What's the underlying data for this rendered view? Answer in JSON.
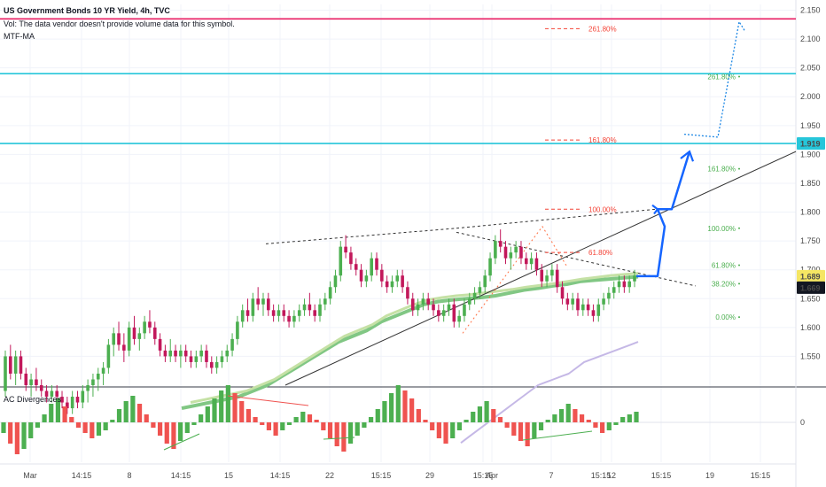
{
  "chart_data": {
    "type": "candlestick",
    "title": "US Government Bonds 10 YR Yield, 4h, TVC",
    "vol_note": "Vol: The data vendor doesn't provide volume data for this symbol.",
    "indicator_label": "MTF-MA",
    "oscillator_label": "AC Divergences",
    "oscillator_zero_label": "0",
    "price_axis": {
      "ticks": [
        "2.150",
        "2.100",
        "2.050",
        "2.000",
        "1.950",
        "1.900",
        "1.850",
        "1.800",
        "1.750",
        "1.700",
        "1.650",
        "1.600",
        "1.550"
      ],
      "range": [
        1.5,
        2.16
      ]
    },
    "price_badges": [
      {
        "value": "1.919",
        "color": "#26c6da"
      },
      {
        "value": "1.689",
        "color": "#f5e663"
      },
      {
        "value": "1.669",
        "color": "#131722"
      }
    ],
    "x_ticks": [
      "Mar",
      "14:15",
      "8",
      "14:15",
      "15",
      "14:15",
      "22",
      "15:15",
      "29",
      "15:15",
      "Apr",
      "7",
      "15:15",
      "12",
      "15:15",
      "19",
      "15:15"
    ],
    "horizontal_lines": [
      {
        "price": 2.135,
        "color": "#e91e63"
      },
      {
        "price": 2.04,
        "color": "#26c6da"
      },
      {
        "price": 1.919,
        "color": "#26c6da"
      }
    ],
    "fib_left": [
      {
        "label": "261.80%",
        "price": 2.118,
        "color": "#f44336"
      },
      {
        "label": "161.80%",
        "price": 1.925,
        "color": "#f44336"
      },
      {
        "label": "100.00%",
        "price": 1.805,
        "color": "#f44336"
      },
      {
        "label": "61.80%",
        "price": 1.73,
        "color": "#f44336"
      }
    ],
    "fib_right": [
      {
        "label": "261.80%",
        "price": 2.035,
        "color": "#4caf50"
      },
      {
        "label": "161.80%",
        "price": 1.875,
        "color": "#4caf50"
      },
      {
        "label": "100.00%",
        "price": 1.772,
        "color": "#4caf50"
      },
      {
        "label": "61.80%",
        "price": 1.708,
        "color": "#4caf50"
      },
      {
        "label": "38.20%",
        "price": 1.676,
        "color": "#4caf50"
      },
      {
        "label": "0.00%",
        "price": 1.618,
        "color": "#4caf50"
      }
    ],
    "candles": [
      [
        1.49,
        1.56,
        1.48,
        1.55
      ],
      [
        1.55,
        1.57,
        1.51,
        1.52
      ],
      [
        1.52,
        1.56,
        1.5,
        1.55
      ],
      [
        1.55,
        1.56,
        1.51,
        1.52
      ],
      [
        1.52,
        1.53,
        1.49,
        1.5
      ],
      [
        1.5,
        1.52,
        1.48,
        1.51
      ],
      [
        1.51,
        1.53,
        1.49,
        1.5
      ],
      [
        1.5,
        1.51,
        1.48,
        1.49
      ],
      [
        1.49,
        1.5,
        1.47,
        1.48
      ],
      [
        1.48,
        1.5,
        1.47,
        1.49
      ],
      [
        1.49,
        1.5,
        1.47,
        1.48
      ],
      [
        1.48,
        1.49,
        1.46,
        1.47
      ],
      [
        1.47,
        1.48,
        1.45,
        1.46
      ],
      [
        1.46,
        1.49,
        1.45,
        1.48
      ],
      [
        1.48,
        1.49,
        1.46,
        1.47
      ],
      [
        1.47,
        1.5,
        1.46,
        1.49
      ],
      [
        1.49,
        1.51,
        1.47,
        1.5
      ],
      [
        1.5,
        1.52,
        1.48,
        1.51
      ],
      [
        1.51,
        1.53,
        1.49,
        1.52
      ],
      [
        1.52,
        1.54,
        1.5,
        1.53
      ],
      [
        1.53,
        1.58,
        1.52,
        1.57
      ],
      [
        1.57,
        1.6,
        1.55,
        1.59
      ],
      [
        1.59,
        1.61,
        1.56,
        1.57
      ],
      [
        1.57,
        1.59,
        1.54,
        1.56
      ],
      [
        1.56,
        1.61,
        1.55,
        1.6
      ],
      [
        1.6,
        1.62,
        1.57,
        1.58
      ],
      [
        1.58,
        1.6,
        1.56,
        1.59
      ],
      [
        1.59,
        1.62,
        1.58,
        1.61
      ],
      [
        1.61,
        1.63,
        1.59,
        1.6
      ],
      [
        1.6,
        1.61,
        1.57,
        1.58
      ],
      [
        1.58,
        1.59,
        1.55,
        1.56
      ],
      [
        1.56,
        1.57,
        1.54,
        1.55
      ],
      [
        1.55,
        1.58,
        1.54,
        1.56
      ],
      [
        1.56,
        1.57,
        1.54,
        1.55
      ],
      [
        1.55,
        1.57,
        1.53,
        1.56
      ],
      [
        1.56,
        1.57,
        1.54,
        1.55
      ],
      [
        1.55,
        1.56,
        1.53,
        1.54
      ],
      [
        1.54,
        1.56,
        1.53,
        1.55
      ],
      [
        1.55,
        1.57,
        1.54,
        1.56
      ],
      [
        1.56,
        1.57,
        1.53,
        1.54
      ],
      [
        1.54,
        1.55,
        1.52,
        1.53
      ],
      [
        1.53,
        1.55,
        1.52,
        1.54
      ],
      [
        1.54,
        1.56,
        1.53,
        1.55
      ],
      [
        1.55,
        1.57,
        1.54,
        1.56
      ],
      [
        1.56,
        1.59,
        1.55,
        1.58
      ],
      [
        1.58,
        1.62,
        1.57,
        1.61
      ],
      [
        1.61,
        1.64,
        1.6,
        1.63
      ],
      [
        1.63,
        1.65,
        1.61,
        1.62
      ],
      [
        1.62,
        1.66,
        1.61,
        1.65
      ],
      [
        1.65,
        1.67,
        1.63,
        1.64
      ],
      [
        1.64,
        1.66,
        1.62,
        1.65
      ],
      [
        1.65,
        1.66,
        1.62,
        1.63
      ],
      [
        1.63,
        1.64,
        1.61,
        1.62
      ],
      [
        1.62,
        1.64,
        1.61,
        1.63
      ],
      [
        1.63,
        1.64,
        1.61,
        1.62
      ],
      [
        1.62,
        1.63,
        1.6,
        1.61
      ],
      [
        1.61,
        1.63,
        1.6,
        1.62
      ],
      [
        1.62,
        1.64,
        1.61,
        1.63
      ],
      [
        1.63,
        1.65,
        1.62,
        1.64
      ],
      [
        1.64,
        1.66,
        1.62,
        1.63
      ],
      [
        1.63,
        1.64,
        1.61,
        1.62
      ],
      [
        1.62,
        1.65,
        1.61,
        1.64
      ],
      [
        1.64,
        1.66,
        1.63,
        1.65
      ],
      [
        1.65,
        1.68,
        1.64,
        1.67
      ],
      [
        1.67,
        1.7,
        1.66,
        1.69
      ],
      [
        1.69,
        1.75,
        1.68,
        1.74
      ],
      [
        1.74,
        1.76,
        1.72,
        1.73
      ],
      [
        1.73,
        1.74,
        1.7,
        1.71
      ],
      [
        1.71,
        1.72,
        1.69,
        1.7
      ],
      [
        1.7,
        1.71,
        1.67,
        1.68
      ],
      [
        1.68,
        1.7,
        1.67,
        1.69
      ],
      [
        1.69,
        1.73,
        1.68,
        1.72
      ],
      [
        1.72,
        1.73,
        1.69,
        1.7
      ],
      [
        1.7,
        1.71,
        1.67,
        1.68
      ],
      [
        1.68,
        1.69,
        1.66,
        1.67
      ],
      [
        1.67,
        1.69,
        1.66,
        1.68
      ],
      [
        1.68,
        1.7,
        1.67,
        1.69
      ],
      [
        1.69,
        1.7,
        1.66,
        1.67
      ],
      [
        1.67,
        1.68,
        1.64,
        1.65
      ],
      [
        1.65,
        1.66,
        1.62,
        1.63
      ],
      [
        1.63,
        1.65,
        1.62,
        1.64
      ],
      [
        1.64,
        1.66,
        1.63,
        1.65
      ],
      [
        1.65,
        1.66,
        1.63,
        1.64
      ],
      [
        1.64,
        1.65,
        1.62,
        1.63
      ],
      [
        1.63,
        1.64,
        1.61,
        1.62
      ],
      [
        1.62,
        1.64,
        1.61,
        1.63
      ],
      [
        1.63,
        1.65,
        1.62,
        1.64
      ],
      [
        1.64,
        1.65,
        1.6,
        1.61
      ],
      [
        1.61,
        1.63,
        1.6,
        1.62
      ],
      [
        1.62,
        1.65,
        1.61,
        1.64
      ],
      [
        1.64,
        1.66,
        1.63,
        1.65
      ],
      [
        1.65,
        1.67,
        1.64,
        1.66
      ],
      [
        1.66,
        1.68,
        1.65,
        1.67
      ],
      [
        1.67,
        1.7,
        1.66,
        1.69
      ],
      [
        1.69,
        1.73,
        1.68,
        1.72
      ],
      [
        1.72,
        1.76,
        1.71,
        1.75
      ],
      [
        1.75,
        1.77,
        1.73,
        1.74
      ],
      [
        1.74,
        1.75,
        1.71,
        1.72
      ],
      [
        1.72,
        1.74,
        1.7,
        1.73
      ],
      [
        1.73,
        1.75,
        1.72,
        1.74
      ],
      [
        1.74,
        1.75,
        1.71,
        1.72
      ],
      [
        1.72,
        1.73,
        1.7,
        1.71
      ],
      [
        1.71,
        1.73,
        1.7,
        1.72
      ],
      [
        1.72,
        1.73,
        1.69,
        1.7
      ],
      [
        1.7,
        1.71,
        1.67,
        1.68
      ],
      [
        1.68,
        1.7,
        1.67,
        1.69
      ],
      [
        1.69,
        1.71,
        1.68,
        1.7
      ],
      [
        1.7,
        1.71,
        1.66,
        1.67
      ],
      [
        1.67,
        1.68,
        1.64,
        1.65
      ],
      [
        1.65,
        1.66,
        1.63,
        1.64
      ],
      [
        1.64,
        1.66,
        1.63,
        1.65
      ],
      [
        1.65,
        1.66,
        1.62,
        1.63
      ],
      [
        1.63,
        1.65,
        1.62,
        1.64
      ],
      [
        1.64,
        1.65,
        1.62,
        1.63
      ],
      [
        1.63,
        1.64,
        1.61,
        1.62
      ],
      [
        1.62,
        1.65,
        1.61,
        1.64
      ],
      [
        1.64,
        1.66,
        1.63,
        1.65
      ],
      [
        1.65,
        1.67,
        1.64,
        1.66
      ],
      [
        1.66,
        1.68,
        1.65,
        1.67
      ],
      [
        1.67,
        1.69,
        1.66,
        1.68
      ],
      [
        1.68,
        1.69,
        1.66,
        1.67
      ],
      [
        1.67,
        1.69,
        1.66,
        1.68
      ],
      [
        1.68,
        1.7,
        1.67,
        1.69
      ]
    ],
    "moving_averages": [
      {
        "name": "",
        "color": "#81c784",
        "values": [
          1.46,
          1.465,
          1.47,
          1.475,
          1.48,
          1.49,
          1.5,
          1.515,
          1.53,
          1.545,
          1.56,
          1.575,
          1.585,
          1.595,
          1.61,
          1.62,
          1.63,
          1.64,
          1.645,
          1.648,
          1.65,
          1.652,
          1.655,
          1.66,
          1.665,
          1.668,
          1.672,
          1.675,
          1.68,
          1.682,
          1.684,
          1.686,
          1.688
        ]
      },
      {
        "name": "",
        "color": "#c5e1a5",
        "values": [
          1.47,
          1.475,
          1.48,
          1.485,
          1.49,
          1.5,
          1.51,
          1.525,
          1.54,
          1.555,
          1.57,
          1.585,
          1.595,
          1.605,
          1.62,
          1.63,
          1.64,
          1.648,
          1.652,
          1.655,
          1.657,
          1.66,
          1.663,
          1.666,
          1.67,
          1.673,
          1.676,
          1.68,
          1.684,
          1.687,
          1.69,
          1.692,
          1.694
        ]
      },
      {
        "name": "",
        "color": "#c5b8e6",
        "values": [
          1.4,
          1.41,
          1.42,
          1.43,
          1.44,
          1.45,
          1.46,
          1.47,
          1.48,
          1.49,
          1.5,
          1.505,
          1.51,
          1.515,
          1.52,
          1.53,
          1.54,
          1.545,
          1.55,
          1.555,
          1.56,
          1.565,
          1.57,
          1.575
        ]
      }
    ],
    "oscillator_values": [
      -0.4,
      -0.8,
      -1.2,
      -1.0,
      -0.6,
      -0.2,
      0.3,
      0.7,
      0.9,
      0.6,
      0.2,
      -0.2,
      -0.4,
      -0.6,
      -0.5,
      -0.3,
      0.1,
      0.5,
      0.8,
      1.0,
      0.7,
      0.3,
      -0.2,
      -0.5,
      -0.8,
      -1.0,
      -0.7,
      -0.4,
      -0.1,
      0.3,
      0.6,
      0.9,
      1.2,
      1.4,
      1.1,
      0.8,
      0.5,
      0.2,
      -0.1,
      -0.3,
      -0.5,
      -0.3,
      -0.1,
      0.2,
      0.4,
      0.3,
      0.1,
      -0.3,
      -0.6,
      -0.9,
      -1.1,
      -0.8,
      -0.5,
      -0.2,
      0.2,
      0.5,
      0.8,
      1.1,
      1.4,
      1.2,
      0.9,
      0.5,
      0.1,
      -0.3,
      -0.6,
      -0.8,
      -0.6,
      -0.3,
      0.1,
      0.4,
      0.6,
      0.8,
      0.5,
      0.2,
      -0.2,
      -0.5,
      -0.7,
      -0.9,
      -0.6,
      -0.3,
      0.1,
      0.3,
      0.5,
      0.7,
      0.5,
      0.3,
      0.1,
      -0.2,
      -0.4,
      -0.3,
      -0.1,
      0.2,
      0.3,
      0.4
    ]
  }
}
